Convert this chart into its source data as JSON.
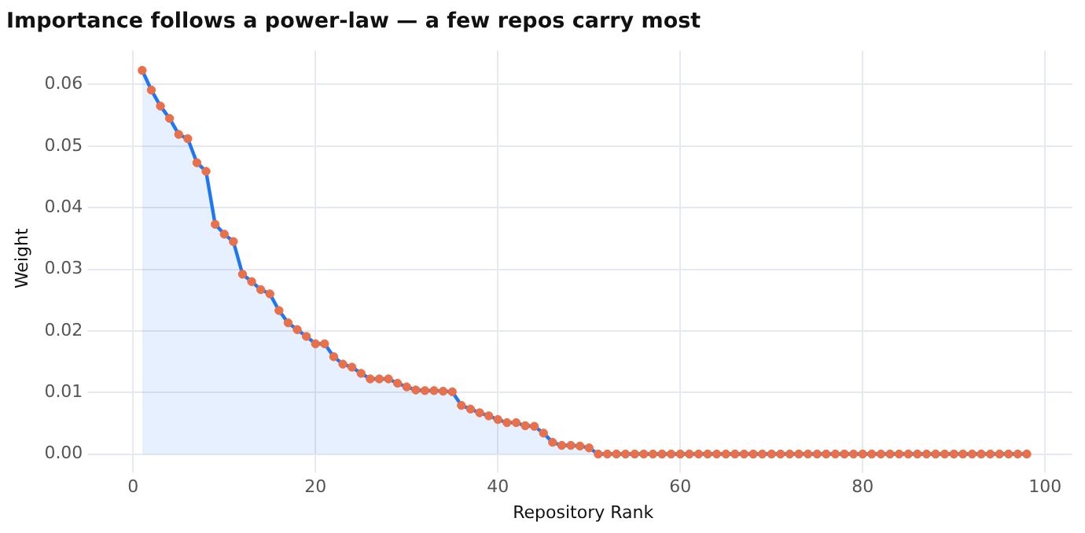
{
  "chart_data": {
    "type": "area",
    "title": "Importance follows a power-law — a few repos carry most",
    "xlabel": "Repository Rank",
    "ylabel": "Weight",
    "x": [
      1,
      2,
      3,
      4,
      5,
      6,
      7,
      8,
      9,
      10,
      11,
      12,
      13,
      14,
      15,
      16,
      17,
      18,
      19,
      20,
      21,
      22,
      23,
      24,
      25,
      26,
      27,
      28,
      29,
      30,
      31,
      32,
      33,
      34,
      35,
      36,
      37,
      38,
      39,
      40,
      41,
      42,
      43,
      44,
      45,
      46,
      47,
      48,
      49,
      50,
      51,
      52,
      53,
      54,
      55,
      56,
      57,
      58,
      59,
      60,
      61,
      62,
      63,
      64,
      65,
      66,
      67,
      68,
      69,
      70,
      71,
      72,
      73,
      74,
      75,
      76,
      77,
      78,
      79,
      80,
      81,
      82,
      83,
      84,
      85,
      86,
      87,
      88,
      89,
      90,
      91,
      92,
      93,
      94,
      95,
      96,
      97,
      98
    ],
    "series": [
      {
        "color": "#1f77f4",
        "values": [
          0.0623,
          0.0591,
          0.0565,
          0.0545,
          0.0519,
          0.0512,
          0.0473,
          0.0459,
          0.0373,
          0.0357,
          0.0345,
          0.0292,
          0.028,
          0.0267,
          0.026,
          0.0233,
          0.0213,
          0.0202,
          0.0191,
          0.0179,
          0.0179,
          0.0158,
          0.0146,
          0.0141,
          0.0131,
          0.0122,
          0.0122,
          0.0122,
          0.0115,
          0.0109,
          0.0104,
          0.0103,
          0.0103,
          0.0102,
          0.0101,
          0.0079,
          0.0073,
          0.0067,
          0.0062,
          0.0056,
          0.0051,
          0.0051,
          0.0046,
          0.0045,
          0.0034,
          0.0019,
          0.0014,
          0.0014,
          0.0013,
          0.001,
          0,
          0,
          0,
          0,
          0,
          0,
          0,
          0,
          0,
          0,
          0,
          0,
          0,
          0,
          0,
          0,
          0,
          0,
          0,
          0,
          0,
          0,
          0,
          0,
          0,
          0,
          0,
          0,
          0,
          0,
          0,
          0,
          0,
          0,
          0,
          0,
          0,
          0,
          0,
          0,
          0,
          0,
          0,
          0,
          0,
          0,
          0,
          0
        ]
      }
    ],
    "xlim": [
      -4.3,
      103
    ],
    "xticks": [
      0,
      20,
      40,
      60,
      80,
      100
    ],
    "ylim": [
      -0.002,
      0.0655
    ],
    "yticks": [
      {
        "value": 0,
        "label": "0.00"
      },
      {
        "value": 0.01,
        "label": "0.01"
      },
      {
        "value": 0.02,
        "label": "0.02"
      },
      {
        "value": 0.03,
        "label": "0.03"
      },
      {
        "value": 0.04,
        "label": "0.04"
      },
      {
        "value": 0.05,
        "label": "0.05"
      },
      {
        "value": 0.06,
        "label": "0.06"
      }
    ],
    "grid": true,
    "legend": false,
    "marker": "circle",
    "line_style": "solid"
  }
}
